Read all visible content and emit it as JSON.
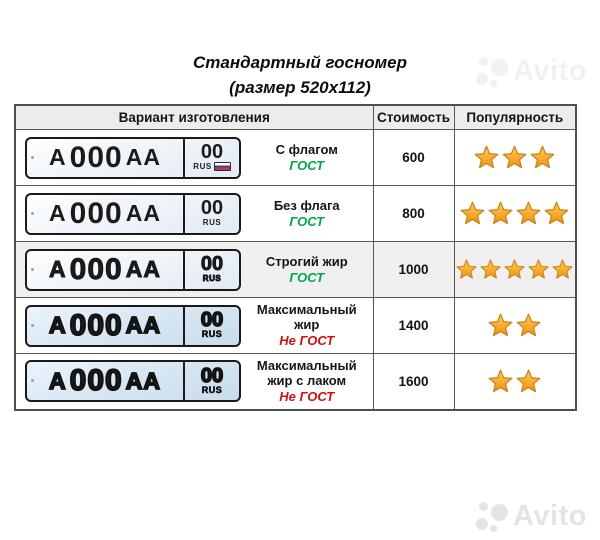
{
  "title": "Стандартный госномер",
  "subtitle": "(размер 520x112)",
  "watermark": {
    "brand": "Avito"
  },
  "colors": {
    "gost": "#00A651",
    "negost": "#CC1111",
    "header_bg": "#ECECEC",
    "highlight_bg": "#F0F0F0",
    "border": "#4F4F4F",
    "star_fill_top": "#FFCB55",
    "star_fill_bottom": "#F09110",
    "star_stroke": "#C8821A"
  },
  "plate_text": {
    "letter": "А",
    "digits": "000",
    "letters": "АА",
    "region": "00",
    "country": "RUS"
  },
  "chart_data": {
    "type": "table",
    "title": "Стандартный госномер (размер 520x112)",
    "columns": [
      "Вариант изготовления",
      "Стоимость",
      "Популярность"
    ],
    "rows": [
      [
        "С флагом ГОСТ",
        600,
        3
      ],
      [
        "Без флага ГОСТ",
        800,
        4
      ],
      [
        "Строгий жир ГОСТ",
        1000,
        5
      ],
      [
        "Максимальный жир Не ГОСТ",
        1400,
        2
      ],
      [
        "Максимальный жир с лаком Не ГОСТ",
        1600,
        2
      ]
    ]
  },
  "table": {
    "headers": [
      "Вариант изготовления",
      "Стоимость",
      "Популярность"
    ],
    "rows": [
      {
        "variant": "С флагом",
        "standard": "ГОСТ",
        "standard_kind": "gost",
        "price": "600",
        "stars": 3,
        "highlight": false,
        "plate": {
          "style": "standard",
          "flag": true
        }
      },
      {
        "variant": "Без флага",
        "standard": "ГОСТ",
        "standard_kind": "gost",
        "price": "800",
        "stars": 4,
        "highlight": false,
        "plate": {
          "style": "standard",
          "flag": false
        }
      },
      {
        "variant": "Строгий жир",
        "standard": "ГОСТ",
        "standard_kind": "gost",
        "price": "1000",
        "stars": 5,
        "highlight": true,
        "plate": {
          "style": "bold",
          "flag": false
        }
      },
      {
        "variant": "Максимальный жир",
        "standard": "Не ГОСТ",
        "standard_kind": "negost",
        "price": "1400",
        "stars": 2,
        "highlight": false,
        "plate": {
          "style": "maxbold",
          "flag": false
        }
      },
      {
        "variant": "Максимальный жир с лаком",
        "standard": "Не ГОСТ",
        "standard_kind": "negost",
        "price": "1600",
        "stars": 2,
        "highlight": false,
        "plate": {
          "style": "maxbold",
          "flag": false
        }
      }
    ]
  }
}
